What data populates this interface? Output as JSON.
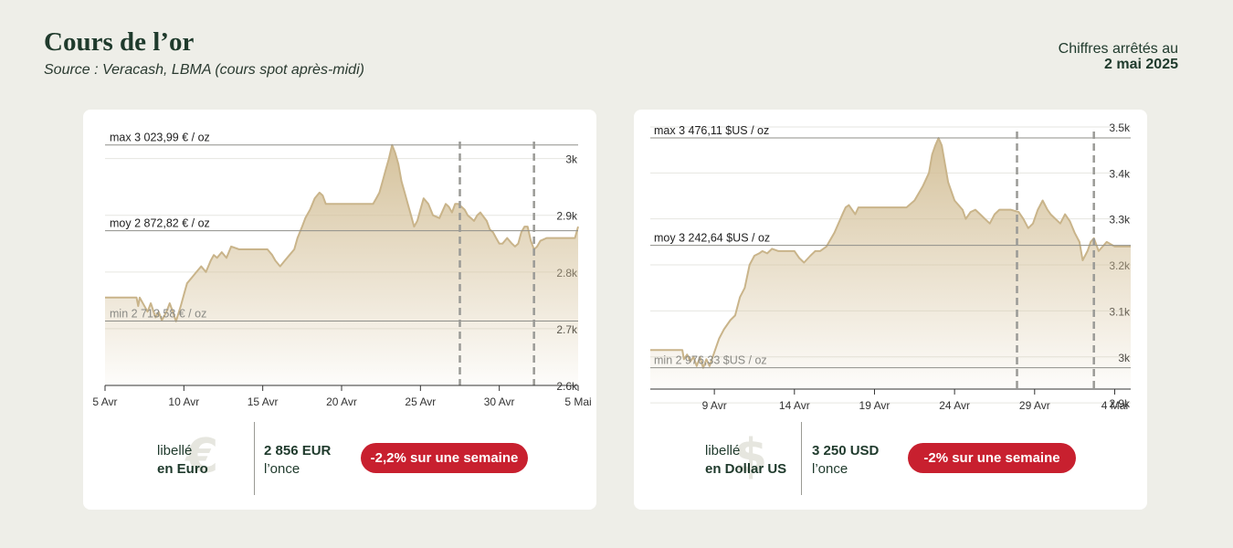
{
  "header": {
    "title": "Cours de l’or",
    "source": "Source : Veracash, LBMA (cours spot après-midi)",
    "asof_prefix": "Chiffres arrêtés au",
    "asof_date": "2 mai 2025"
  },
  "colors": {
    "line": "#c9b48a",
    "fill_top": "#d3bf97",
    "badge": "#c8202f",
    "text": "#1f3a2c"
  },
  "cards": [
    {
      "label_top": "libellé",
      "label_bottom": "en Euro",
      "icon": "euro-icon",
      "price": "2 856 EUR",
      "unit": "l’once",
      "badge": "-2,2% sur une semaine"
    },
    {
      "label_top": "libellé",
      "label_bottom": "en Dollar US",
      "icon": "dollar-icon",
      "price": "3 250 USD",
      "unit": "l’once",
      "badge": "-2% sur une semaine"
    }
  ],
  "chart_data": [
    {
      "type": "area",
      "currency": "EUR",
      "ylim": [
        2600,
        3030
      ],
      "yticks": [
        2600,
        2700,
        2800,
        2900,
        3000
      ],
      "ytick_labels": [
        "2.6k",
        "2.7k",
        "2.8k",
        "2.9k",
        "3k"
      ],
      "xlim": [
        0,
        30
      ],
      "xticks": [
        0,
        5,
        10,
        15,
        20,
        25,
        30
      ],
      "xtick_labels": [
        "5 Avr",
        "10 Avr",
        "15 Avr",
        "20 Avr",
        "25 Avr",
        "30 Avr",
        "5 Mai"
      ],
      "vlines": [
        22.5,
        27.2
      ],
      "refs": [
        {
          "kind": "max",
          "value": 3023.99,
          "label": "max 3 023,99 € / oz"
        },
        {
          "kind": "moy",
          "value": 2872.82,
          "label": "moy 2 872,82 € / oz"
        },
        {
          "kind": "min",
          "value": 2713.58,
          "label": "min 2 713,58 € / oz"
        }
      ],
      "x": [
        0,
        2,
        2.1,
        2.2,
        2.7,
        2.9,
        3.2,
        3.4,
        3.6,
        3.9,
        4.1,
        4.3,
        4.5,
        4.8,
        5.0,
        5.2,
        5.5,
        5.8,
        6.1,
        6.4,
        6.7,
        6.9,
        7.1,
        7.4,
        7.7,
        8.0,
        8.5,
        9.0,
        9.5,
        10.0,
        10.3,
        10.6,
        10.8,
        11.1,
        11.4,
        11.7,
        12.0,
        12.2,
        12.5,
        12.7,
        13.0,
        13.3,
        13.6,
        13.8,
        14.0,
        15.0,
        16.0,
        16.5,
        17.0,
        17.2,
        17.4,
        17.6,
        17.8,
        18.0,
        18.2,
        18.4,
        18.6,
        18.8,
        19.0,
        19.2,
        19.4,
        19.6,
        19.8,
        20.0,
        20.2,
        20.5,
        20.8,
        21.2,
        21.6,
        21.8,
        22.0,
        22.2,
        22.4,
        22.8,
        23.0,
        23.2,
        23.4,
        23.6,
        23.8,
        24.2,
        24.4,
        24.6,
        24.8,
        25.0,
        25.2,
        25.5,
        25.8,
        26.0,
        26.2,
        26.4,
        26.6,
        26.8,
        27.0,
        27.2,
        27.4,
        27.6,
        28.0,
        28.5,
        29.0,
        29.5,
        29.8,
        30.0
      ],
      "y": [
        2755,
        2755,
        2740,
        2755,
        2730,
        2745,
        2720,
        2730,
        2715,
        2730,
        2745,
        2730,
        2713,
        2740,
        2760,
        2780,
        2790,
        2800,
        2810,
        2800,
        2820,
        2830,
        2825,
        2835,
        2825,
        2845,
        2840,
        2840,
        2840,
        2840,
        2840,
        2830,
        2820,
        2810,
        2820,
        2830,
        2840,
        2860,
        2880,
        2895,
        2910,
        2930,
        2940,
        2935,
        2920,
        2920,
        2920,
        2920,
        2920,
        2930,
        2940,
        2960,
        2980,
        3000,
        3024,
        3010,
        2990,
        2960,
        2940,
        2920,
        2900,
        2880,
        2890,
        2910,
        2930,
        2920,
        2900,
        2895,
        2920,
        2915,
        2905,
        2920,
        2920,
        2910,
        2900,
        2895,
        2890,
        2900,
        2905,
        2890,
        2875,
        2870,
        2860,
        2850,
        2850,
        2860,
        2850,
        2845,
        2850,
        2870,
        2880,
        2880,
        2855,
        2840,
        2845,
        2855,
        2860,
        2860,
        2860,
        2860,
        2860,
        2880
      ]
    },
    {
      "type": "area",
      "currency": "USD",
      "ylim": [
        2930,
        3490
      ],
      "yticks": [
        2900,
        3000,
        3100,
        3200,
        3300,
        3400,
        3500
      ],
      "ytick_labels": [
        "2.9k",
        "3k",
        "3.1k",
        "3.2k",
        "3.3k",
        "3.4k",
        "3.5k"
      ],
      "xlim": [
        0,
        30
      ],
      "xticks": [
        4,
        9,
        14,
        19,
        24,
        29,
        34
      ],
      "xtick_labels": [
        "9 Avr",
        "14 Avr",
        "19 Avr",
        "24 Avr",
        "29 Avr",
        "4 Mai"
      ],
      "vlines": [
        22.9,
        27.7
      ],
      "refs": [
        {
          "kind": "max",
          "value": 3476.11,
          "label": "max 3 476,11 $US / oz"
        },
        {
          "kind": "moy",
          "value": 3242.64,
          "label": "moy 3 242,64 $US / oz"
        },
        {
          "kind": "min",
          "value": 2976.33,
          "label": "min 2 976,33 $US / oz"
        }
      ],
      "x": [
        0,
        2,
        2.1,
        2.3,
        2.5,
        2.7,
        2.9,
        3.1,
        3.3,
        3.5,
        3.7,
        4.0,
        4.3,
        4.6,
        5.0,
        5.3,
        5.6,
        5.9,
        6.2,
        6.5,
        6.8,
        7.0,
        7.3,
        7.6,
        8.0,
        8.4,
        8.8,
        9.0,
        9.3,
        9.6,
        10.0,
        10.3,
        10.6,
        11.0,
        11.5,
        12.0,
        12.2,
        12.4,
        12.6,
        12.8,
        13.0,
        14.0,
        15.0,
        16.0,
        16.5,
        17.0,
        17.2,
        17.4,
        17.6,
        17.8,
        18.0,
        18.2,
        18.4,
        18.6,
        19.0,
        19.5,
        19.7,
        20.0,
        20.3,
        20.6,
        20.9,
        21.2,
        21.5,
        21.8,
        22.0,
        22.5,
        23.0,
        23.3,
        23.6,
        23.9,
        24.2,
        24.5,
        24.8,
        25.0,
        25.3,
        25.6,
        25.9,
        26.2,
        26.5,
        26.8,
        27.0,
        27.3,
        27.5,
        27.7,
        28.0,
        28.5,
        29.0,
        29.5,
        30.0
      ],
      "y": [
        3015,
        3015,
        2995,
        3005,
        2990,
        3000,
        2980,
        3000,
        2976,
        2995,
        2980,
        3010,
        3040,
        3060,
        3080,
        3090,
        3130,
        3150,
        3200,
        3220,
        3225,
        3230,
        3225,
        3235,
        3230,
        3230,
        3230,
        3230,
        3215,
        3205,
        3220,
        3230,
        3230,
        3240,
        3270,
        3310,
        3325,
        3330,
        3320,
        3310,
        3325,
        3325,
        3325,
        3325,
        3340,
        3370,
        3385,
        3400,
        3440,
        3460,
        3476,
        3460,
        3420,
        3380,
        3340,
        3320,
        3300,
        3315,
        3320,
        3310,
        3300,
        3290,
        3310,
        3320,
        3320,
        3320,
        3315,
        3300,
        3280,
        3290,
        3320,
        3340,
        3320,
        3310,
        3300,
        3290,
        3310,
        3295,
        3270,
        3250,
        3210,
        3230,
        3250,
        3258,
        3230,
        3250,
        3240,
        3240,
        3240
      ]
    }
  ]
}
